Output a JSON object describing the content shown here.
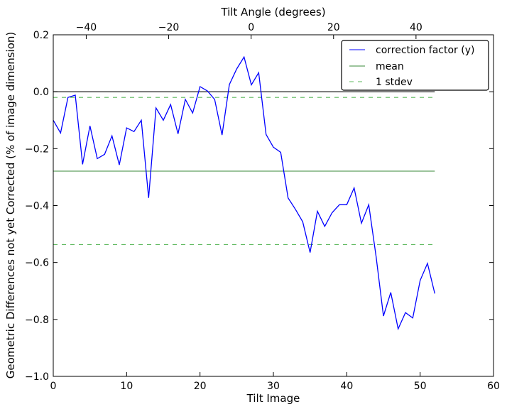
{
  "chart_data": {
    "type": "line",
    "xlabel": "Tilt Image",
    "ylabel": "Geometric Differences not yet Corrected (% of image dimension)",
    "top_xlabel": "Tilt Angle (degrees)",
    "xlim": [
      0,
      60
    ],
    "ylim": [
      -1.0,
      0.2
    ],
    "top_xlim": [
      -48,
      58.8
    ],
    "xticks": [
      0,
      10,
      20,
      30,
      40,
      50,
      60
    ],
    "yticks": [
      -1.0,
      -0.8,
      -0.6,
      -0.4,
      -0.2,
      0.0,
      0.2
    ],
    "ytick_labels": [
      "−1.0",
      "−0.8",
      "−0.6",
      "−0.4",
      "−0.2",
      "0.0",
      "0.2"
    ],
    "top_xticks": [
      -40,
      -20,
      0,
      20,
      40
    ],
    "top_xtick_labels": [
      "−40",
      "−20",
      "0",
      "20",
      "40"
    ],
    "grid": false,
    "legend_position": "top-right",
    "series": [
      {
        "name": "correction factor (y)",
        "color": "#0000ff",
        "style": "solid",
        "x": [
          0,
          1,
          2,
          3,
          4,
          5,
          6,
          7,
          8,
          9,
          10,
          11,
          12,
          13,
          14,
          15,
          16,
          17,
          18,
          19,
          20,
          21,
          22,
          23,
          24,
          25,
          26,
          27,
          28,
          29,
          30,
          31,
          32,
          33,
          34,
          35,
          36,
          37,
          38,
          39,
          40,
          41,
          42,
          43,
          44,
          45,
          46,
          47,
          48,
          49,
          50,
          51,
          52
        ],
        "y": [
          -0.1,
          -0.145,
          -0.02,
          -0.012,
          -0.255,
          -0.12,
          -0.235,
          -0.22,
          -0.155,
          -0.257,
          -0.127,
          -0.14,
          -0.1,
          -0.373,
          -0.057,
          -0.1,
          -0.045,
          -0.148,
          -0.027,
          -0.075,
          0.018,
          0.003,
          -0.027,
          -0.152,
          0.025,
          0.08,
          0.122,
          0.024,
          0.067,
          -0.15,
          -0.195,
          -0.213,
          -0.373,
          -0.413,
          -0.457,
          -0.565,
          -0.42,
          -0.473,
          -0.425,
          -0.397,
          -0.397,
          -0.338,
          -0.462,
          -0.397,
          -0.58,
          -0.788,
          -0.705,
          -0.833,
          -0.776,
          -0.795,
          -0.663,
          -0.603,
          -0.709
        ]
      },
      {
        "name": "mean",
        "color": "#3a8a3a",
        "style": "solid",
        "x": [
          0,
          52
        ],
        "y": [
          -0.279,
          -0.279
        ]
      },
      {
        "name": "1 stdev",
        "color": "#5cb85c",
        "style": "dashed",
        "x": [
          0,
          52
        ],
        "y": [
          -0.02,
          -0.02
        ]
      },
      {
        "name": "1 stdev lower",
        "color": "#5cb85c",
        "style": "dashed",
        "x": [
          0,
          52
        ],
        "y": [
          -0.537,
          -0.537
        ],
        "legend": false
      },
      {
        "name": "zero",
        "color": "#000000",
        "style": "solid",
        "x": [
          0,
          52
        ],
        "y": [
          0,
          0
        ],
        "legend": false
      }
    ]
  }
}
